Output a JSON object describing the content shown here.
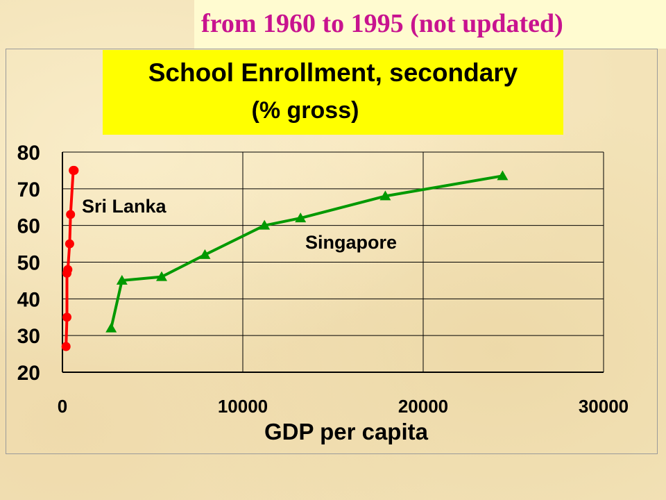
{
  "subtitle": "from 1960 to 1995 (not updated)",
  "chart_data": {
    "type": "line",
    "title": "School Enrollment, secondary",
    "title_line2": "(% gross)",
    "xlabel": "GDP per capita",
    "ylabel": "",
    "xlim": [
      0,
      30000
    ],
    "ylim": [
      20,
      80
    ],
    "x_ticks": [
      "0",
      "10000",
      "20000",
      "30000"
    ],
    "y_ticks": [
      "20",
      "30",
      "40",
      "50",
      "60",
      "70",
      "80"
    ],
    "grid": true,
    "series": [
      {
        "name": "Sri Lanka",
        "color": "#ff0000",
        "marker": "circle",
        "points": [
          {
            "x": 200,
            "y": 27
          },
          {
            "x": 250,
            "y": 35
          },
          {
            "x": 250,
            "y": 47
          },
          {
            "x": 300,
            "y": 48
          },
          {
            "x": 400,
            "y": 55
          },
          {
            "x": 450,
            "y": 63
          },
          {
            "x": 600,
            "y": 75
          },
          {
            "x": 650,
            "y": 75
          }
        ]
      },
      {
        "name": "Singapore",
        "color": "#009900",
        "marker": "triangle",
        "points": [
          {
            "x": 2700,
            "y": 32
          },
          {
            "x": 3300,
            "y": 45
          },
          {
            "x": 5500,
            "y": 46
          },
          {
            "x": 7900,
            "y": 52
          },
          {
            "x": 11200,
            "y": 60
          },
          {
            "x": 13200,
            "y": 62
          },
          {
            "x": 17900,
            "y": 68
          },
          {
            "x": 24400,
            "y": 73.5
          }
        ]
      }
    ]
  }
}
